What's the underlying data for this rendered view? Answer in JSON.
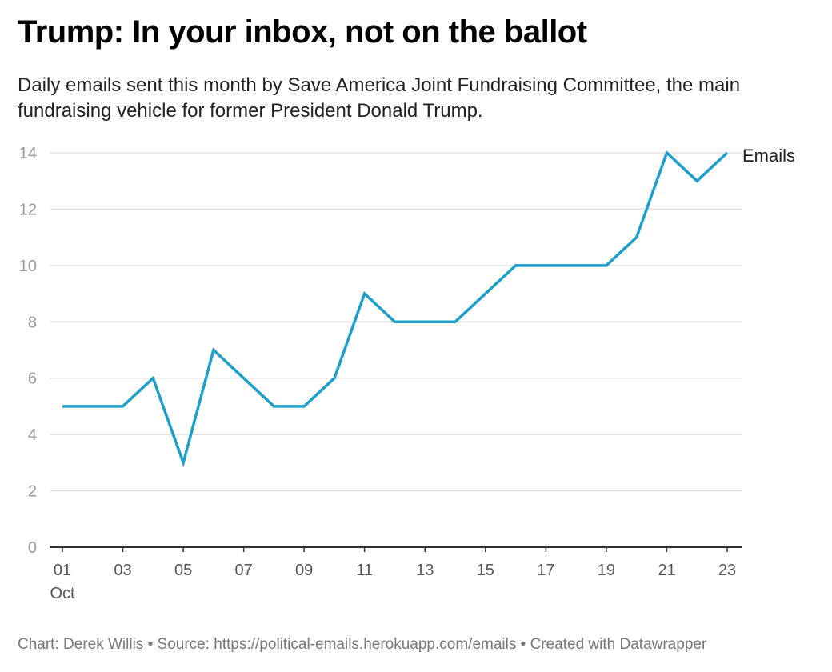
{
  "title": "Trump: In your inbox, not on the ballot",
  "subtitle": "Daily emails sent this month by Save America Joint Fundraising Committee, the main fundraising vehicle for former President Donald Trump.",
  "footer": {
    "credit": "Chart: Derek Willis",
    "source": "Source: https://political-emails.herokuapp.com/emails",
    "created": "Created with Datawrapper",
    "separator": " • "
  },
  "chart_data": {
    "type": "line",
    "title": "Trump: In your inbox, not on the ballot",
    "x": [
      1,
      2,
      3,
      4,
      5,
      6,
      7,
      8,
      9,
      10,
      11,
      12,
      13,
      14,
      15,
      16,
      17,
      18,
      19,
      20,
      21,
      22,
      23
    ],
    "series": [
      {
        "name": "Emails",
        "values": [
          5,
          5,
          5,
          6,
          3,
          7,
          6,
          5,
          5,
          6,
          9,
          8,
          8,
          8,
          9,
          10,
          10,
          10,
          10,
          11,
          14,
          13,
          14
        ]
      }
    ],
    "xlim": [
      1,
      23
    ],
    "ylim": [
      0,
      14
    ],
    "yticks": [
      0,
      2,
      4,
      6,
      8,
      10,
      12,
      14
    ],
    "xtick_labels": [
      "01",
      "03",
      "05",
      "07",
      "09",
      "11",
      "13",
      "15",
      "17",
      "19",
      "21",
      "23"
    ],
    "xtick_values": [
      1,
      3,
      5,
      7,
      9,
      11,
      13,
      15,
      17,
      19,
      21,
      23
    ],
    "x_month_label": "Oct",
    "grid": true,
    "legend": "label at end of line",
    "colors": {
      "line": "#1d9fcb",
      "grid": "#e3e3e3",
      "axis": "#333333"
    }
  }
}
